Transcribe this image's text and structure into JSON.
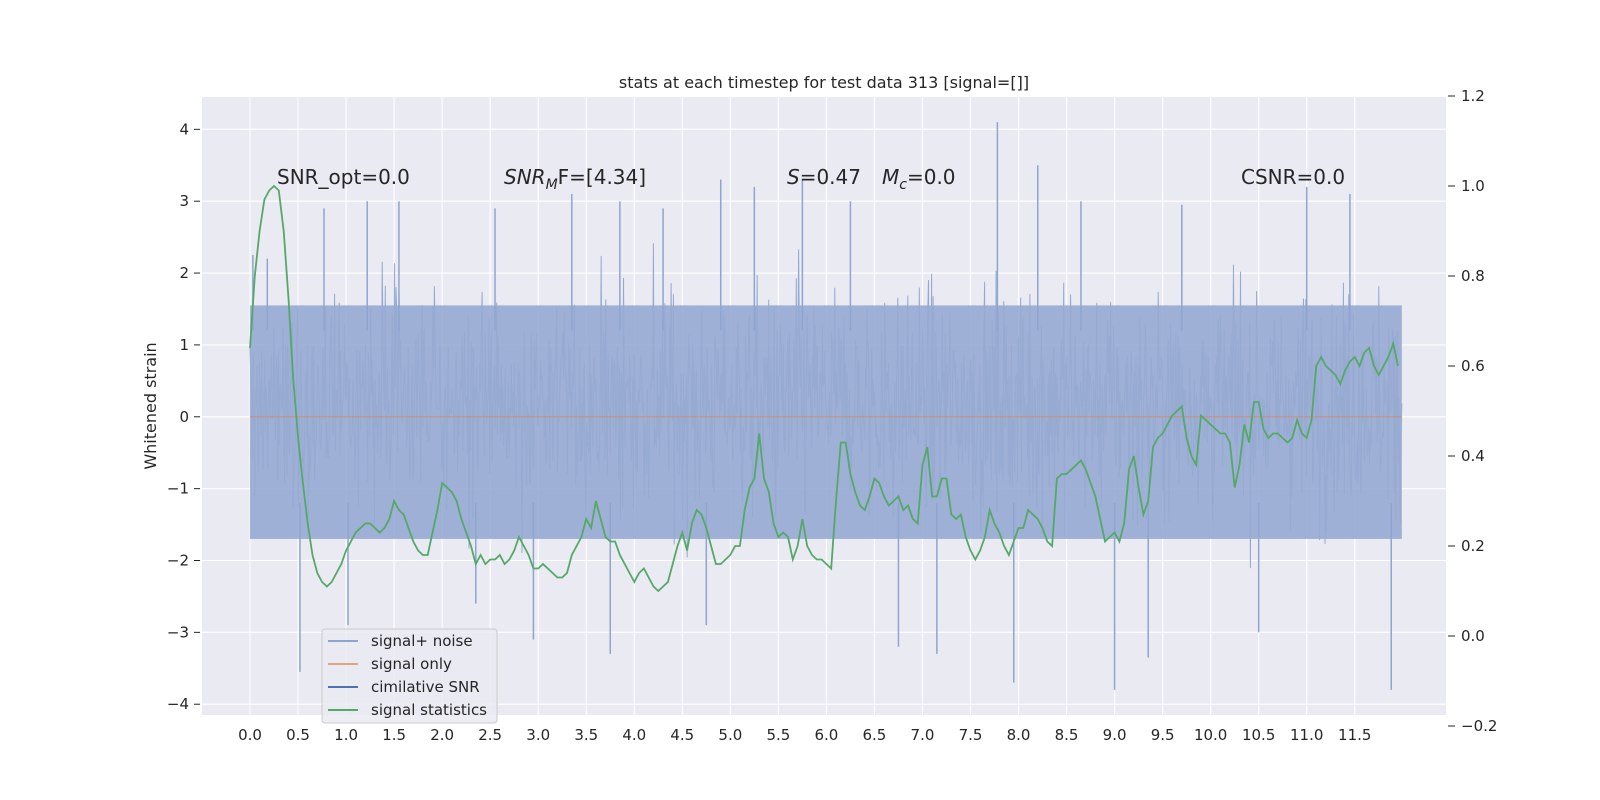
{
  "chart_data": {
    "type": "line",
    "title": "stats at each timestep for test data 313 [signal=[]]",
    "ylabel": "Whitened strain",
    "xlabel": "",
    "xlim": [
      -0.5,
      12.45
    ],
    "ylim": [
      -4.15,
      4.45
    ],
    "y2lim": [
      -0.2,
      1.2
    ],
    "x_ticks": [
      "0.0",
      "0.5",
      "1.0",
      "1.5",
      "2.0",
      "2.5",
      "3.0",
      "3.5",
      "4.0",
      "4.5",
      "5.0",
      "5.5",
      "6.0",
      "6.5",
      "7.0",
      "7.5",
      "8.0",
      "8.5",
      "9.0",
      "9.5",
      "10.0",
      "10.5",
      "11.0",
      "11.5"
    ],
    "y_ticks": [
      4,
      3,
      2,
      1,
      0,
      -1,
      -2,
      -3,
      -4
    ],
    "y_tick_labels": [
      "4",
      "3",
      "2",
      "1",
      "0",
      "−1",
      "−2",
      "−3",
      "−4"
    ],
    "y2_ticks": [
      1.2,
      1.0,
      0.8,
      0.6,
      0.4,
      0.2,
      0.0,
      -0.2
    ],
    "y2_tick_labels": [
      "1.2",
      "1.0",
      "0.8",
      "0.6",
      "0.4",
      "0.2",
      "0.0",
      "−0.2"
    ],
    "grid": true,
    "legend_position": "lower-left",
    "annotations": {
      "snr_opt": "SNR_opt=0.0",
      "snr_mf_main": "SNR",
      "snr_mf_sub": "M",
      "snr_mf_tail": "F=[4.34]",
      "s_var": "S",
      "s_val": "=0.47",
      "mc_var": "M",
      "mc_sub": "c",
      "mc_val": "=0.0",
      "csnr": "CSNR=0.0"
    },
    "series": [
      {
        "name": "signal+ noise",
        "color": "#8fa5cf",
        "description_values": "dense noise, mostly within -2.5..3.3, peaks to 4.1 near x=7.8 and -3.8 near x=9.0 and 11.9",
        "spikes": [
          [
            0.03,
            2.25
          ],
          [
            0.18,
            2.2
          ],
          [
            0.52,
            -3.55
          ],
          [
            0.77,
            2.9
          ],
          [
            1.02,
            -2.9
          ],
          [
            1.22,
            3.0
          ],
          [
            1.55,
            3.0
          ],
          [
            2.35,
            -2.6
          ],
          [
            2.55,
            2.9
          ],
          [
            2.95,
            -3.1
          ],
          [
            3.35,
            3.1
          ],
          [
            3.75,
            -3.3
          ],
          [
            3.85,
            3.0
          ],
          [
            4.3,
            2.9
          ],
          [
            4.75,
            -2.9
          ],
          [
            4.9,
            3.3
          ],
          [
            5.25,
            3.2
          ],
          [
            5.75,
            3.3
          ],
          [
            6.25,
            3.0
          ],
          [
            6.75,
            -3.2
          ],
          [
            7.15,
            -3.3
          ],
          [
            7.78,
            4.1
          ],
          [
            7.95,
            -3.7
          ],
          [
            8.2,
            3.5
          ],
          [
            8.65,
            3.0
          ],
          [
            9.0,
            -3.8
          ],
          [
            9.35,
            -3.35
          ],
          [
            9.7,
            2.95
          ],
          [
            10.5,
            -3.0
          ],
          [
            11.0,
            3.2
          ],
          [
            11.45,
            3.1
          ],
          [
            11.88,
            -3.8
          ]
        ]
      },
      {
        "name": "signal only",
        "color": "#dd8452",
        "values": [
          [
            0,
            0
          ],
          [
            11.99,
            0
          ]
        ]
      },
      {
        "name": "cimilative SNR",
        "color": "#4c72b0",
        "values": []
      },
      {
        "name": "signal statistics",
        "color": "#55a868",
        "axis": "right",
        "values": [
          [
            0.0,
            0.64
          ],
          [
            0.05,
            0.8
          ],
          [
            0.1,
            0.9
          ],
          [
            0.15,
            0.97
          ],
          [
            0.2,
            0.99
          ],
          [
            0.25,
            1.0
          ],
          [
            0.3,
            0.99
          ],
          [
            0.35,
            0.9
          ],
          [
            0.4,
            0.75
          ],
          [
            0.45,
            0.57
          ],
          [
            0.5,
            0.44
          ],
          [
            0.55,
            0.34
          ],
          [
            0.6,
            0.25
          ],
          [
            0.65,
            0.18
          ],
          [
            0.7,
            0.14
          ],
          [
            0.75,
            0.12
          ],
          [
            0.8,
            0.11
          ],
          [
            0.85,
            0.12
          ],
          [
            0.9,
            0.14
          ],
          [
            0.95,
            0.16
          ],
          [
            1.0,
            0.19
          ],
          [
            1.05,
            0.21
          ],
          [
            1.1,
            0.23
          ],
          [
            1.15,
            0.24
          ],
          [
            1.2,
            0.25
          ],
          [
            1.25,
            0.25
          ],
          [
            1.3,
            0.24
          ],
          [
            1.35,
            0.23
          ],
          [
            1.4,
            0.24
          ],
          [
            1.45,
            0.26
          ],
          [
            1.5,
            0.3
          ],
          [
            1.55,
            0.28
          ],
          [
            1.6,
            0.27
          ],
          [
            1.65,
            0.24
          ],
          [
            1.7,
            0.21
          ],
          [
            1.75,
            0.19
          ],
          [
            1.8,
            0.18
          ],
          [
            1.85,
            0.18
          ],
          [
            1.9,
            0.23
          ],
          [
            1.95,
            0.28
          ],
          [
            2.0,
            0.34
          ],
          [
            2.05,
            0.33
          ],
          [
            2.1,
            0.32
          ],
          [
            2.15,
            0.3
          ],
          [
            2.2,
            0.26
          ],
          [
            2.25,
            0.23
          ],
          [
            2.3,
            0.2
          ],
          [
            2.35,
            0.16
          ],
          [
            2.4,
            0.18
          ],
          [
            2.45,
            0.16
          ],
          [
            2.5,
            0.17
          ],
          [
            2.55,
            0.17
          ],
          [
            2.6,
            0.18
          ],
          [
            2.65,
            0.16
          ],
          [
            2.7,
            0.17
          ],
          [
            2.75,
            0.19
          ],
          [
            2.8,
            0.22
          ],
          [
            2.85,
            0.2
          ],
          [
            2.9,
            0.18
          ],
          [
            2.95,
            0.15
          ],
          [
            3.0,
            0.15
          ],
          [
            3.05,
            0.16
          ],
          [
            3.1,
            0.15
          ],
          [
            3.15,
            0.14
          ],
          [
            3.2,
            0.13
          ],
          [
            3.25,
            0.13
          ],
          [
            3.3,
            0.14
          ],
          [
            3.35,
            0.18
          ],
          [
            3.4,
            0.2
          ],
          [
            3.45,
            0.22
          ],
          [
            3.5,
            0.26
          ],
          [
            3.55,
            0.24
          ],
          [
            3.6,
            0.3
          ],
          [
            3.65,
            0.26
          ],
          [
            3.7,
            0.22
          ],
          [
            3.75,
            0.21
          ],
          [
            3.8,
            0.21
          ],
          [
            3.85,
            0.18
          ],
          [
            3.9,
            0.16
          ],
          [
            3.95,
            0.14
          ],
          [
            4.0,
            0.12
          ],
          [
            4.05,
            0.14
          ],
          [
            4.1,
            0.15
          ],
          [
            4.15,
            0.13
          ],
          [
            4.2,
            0.11
          ],
          [
            4.25,
            0.1
          ],
          [
            4.3,
            0.11
          ],
          [
            4.35,
            0.12
          ],
          [
            4.4,
            0.16
          ],
          [
            4.45,
            0.2
          ],
          [
            4.5,
            0.23
          ],
          [
            4.55,
            0.19
          ],
          [
            4.6,
            0.25
          ],
          [
            4.65,
            0.28
          ],
          [
            4.7,
            0.27
          ],
          [
            4.75,
            0.24
          ],
          [
            4.8,
            0.2
          ],
          [
            4.85,
            0.16
          ],
          [
            4.9,
            0.16
          ],
          [
            4.95,
            0.17
          ],
          [
            5.0,
            0.18
          ],
          [
            5.05,
            0.2
          ],
          [
            5.1,
            0.2
          ],
          [
            5.15,
            0.28
          ],
          [
            5.2,
            0.33
          ],
          [
            5.25,
            0.35
          ],
          [
            5.3,
            0.45
          ],
          [
            5.35,
            0.35
          ],
          [
            5.4,
            0.32
          ],
          [
            5.45,
            0.25
          ],
          [
            5.5,
            0.22
          ],
          [
            5.55,
            0.23
          ],
          [
            5.6,
            0.22
          ],
          [
            5.65,
            0.17
          ],
          [
            5.7,
            0.2
          ],
          [
            5.75,
            0.26
          ],
          [
            5.8,
            0.2
          ],
          [
            5.85,
            0.18
          ],
          [
            5.9,
            0.17
          ],
          [
            5.95,
            0.17
          ],
          [
            6.0,
            0.16
          ],
          [
            6.05,
            0.15
          ],
          [
            6.1,
            0.3
          ],
          [
            6.15,
            0.43
          ],
          [
            6.2,
            0.43
          ],
          [
            6.25,
            0.36
          ],
          [
            6.3,
            0.32
          ],
          [
            6.35,
            0.29
          ],
          [
            6.4,
            0.28
          ],
          [
            6.45,
            0.31
          ],
          [
            6.5,
            0.35
          ],
          [
            6.55,
            0.34
          ],
          [
            6.6,
            0.31
          ],
          [
            6.65,
            0.29
          ],
          [
            6.7,
            0.3
          ],
          [
            6.75,
            0.31
          ],
          [
            6.8,
            0.28
          ],
          [
            6.85,
            0.29
          ],
          [
            6.9,
            0.26
          ],
          [
            6.95,
            0.25
          ],
          [
            7.0,
            0.38
          ],
          [
            7.05,
            0.42
          ],
          [
            7.1,
            0.31
          ],
          [
            7.15,
            0.31
          ],
          [
            7.2,
            0.35
          ],
          [
            7.25,
            0.35
          ],
          [
            7.3,
            0.27
          ],
          [
            7.35,
            0.26
          ],
          [
            7.4,
            0.27
          ],
          [
            7.45,
            0.22
          ],
          [
            7.5,
            0.19
          ],
          [
            7.55,
            0.17
          ],
          [
            7.6,
            0.19
          ],
          [
            7.65,
            0.22
          ],
          [
            7.7,
            0.28
          ],
          [
            7.75,
            0.25
          ],
          [
            7.8,
            0.23
          ],
          [
            7.85,
            0.2
          ],
          [
            7.9,
            0.18
          ],
          [
            7.95,
            0.21
          ],
          [
            8.0,
            0.24
          ],
          [
            8.05,
            0.24
          ],
          [
            8.1,
            0.28
          ],
          [
            8.15,
            0.27
          ],
          [
            8.2,
            0.26
          ],
          [
            8.25,
            0.24
          ],
          [
            8.3,
            0.21
          ],
          [
            8.35,
            0.2
          ],
          [
            8.4,
            0.35
          ],
          [
            8.45,
            0.36
          ],
          [
            8.5,
            0.36
          ],
          [
            8.55,
            0.37
          ],
          [
            8.6,
            0.38
          ],
          [
            8.65,
            0.39
          ],
          [
            8.7,
            0.37
          ],
          [
            8.75,
            0.34
          ],
          [
            8.8,
            0.31
          ],
          [
            8.85,
            0.26
          ],
          [
            8.9,
            0.21
          ],
          [
            8.95,
            0.22
          ],
          [
            9.0,
            0.23
          ],
          [
            9.05,
            0.21
          ],
          [
            9.1,
            0.25
          ],
          [
            9.15,
            0.37
          ],
          [
            9.2,
            0.4
          ],
          [
            9.25,
            0.33
          ],
          [
            9.3,
            0.27
          ],
          [
            9.35,
            0.3
          ],
          [
            9.4,
            0.42
          ],
          [
            9.45,
            0.44
          ],
          [
            9.5,
            0.45
          ],
          [
            9.55,
            0.47
          ],
          [
            9.6,
            0.49
          ],
          [
            9.65,
            0.5
          ],
          [
            9.7,
            0.51
          ],
          [
            9.75,
            0.44
          ],
          [
            9.8,
            0.4
          ],
          [
            9.85,
            0.38
          ],
          [
            9.9,
            0.49
          ],
          [
            9.95,
            0.48
          ],
          [
            10.0,
            0.47
          ],
          [
            10.05,
            0.46
          ],
          [
            10.1,
            0.45
          ],
          [
            10.15,
            0.45
          ],
          [
            10.2,
            0.43
          ],
          [
            10.25,
            0.33
          ],
          [
            10.3,
            0.38
          ],
          [
            10.35,
            0.47
          ],
          [
            10.4,
            0.43
          ],
          [
            10.45,
            0.52
          ],
          [
            10.5,
            0.52
          ],
          [
            10.55,
            0.46
          ],
          [
            10.6,
            0.44
          ],
          [
            10.65,
            0.45
          ],
          [
            10.7,
            0.45
          ],
          [
            10.75,
            0.44
          ],
          [
            10.8,
            0.43
          ],
          [
            10.85,
            0.44
          ],
          [
            10.9,
            0.48
          ],
          [
            10.95,
            0.45
          ],
          [
            11.0,
            0.44
          ],
          [
            11.05,
            0.48
          ],
          [
            11.1,
            0.6
          ],
          [
            11.15,
            0.62
          ],
          [
            11.2,
            0.6
          ],
          [
            11.25,
            0.59
          ],
          [
            11.3,
            0.58
          ],
          [
            11.35,
            0.56
          ],
          [
            11.4,
            0.59
          ],
          [
            11.45,
            0.61
          ],
          [
            11.5,
            0.62
          ],
          [
            11.55,
            0.6
          ],
          [
            11.6,
            0.63
          ],
          [
            11.65,
            0.64
          ],
          [
            11.7,
            0.6
          ],
          [
            11.75,
            0.58
          ],
          [
            11.8,
            0.6
          ],
          [
            11.85,
            0.62
          ],
          [
            11.9,
            0.65
          ],
          [
            11.95,
            0.6
          ]
        ]
      }
    ]
  }
}
